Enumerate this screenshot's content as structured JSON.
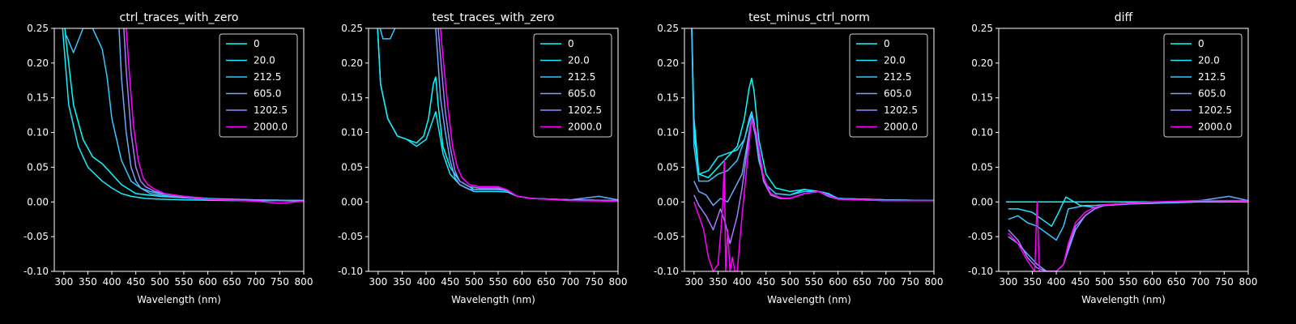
{
  "chart_data": [
    {
      "type": "line",
      "title": "ctrl_traces_with_zero",
      "xlabel": "Wavelength (nm)",
      "xlim": [
        280,
        800
      ],
      "ylim": [
        -0.1,
        0.25
      ],
      "xticks": [
        300,
        350,
        400,
        450,
        500,
        550,
        600,
        650,
        700,
        750,
        800
      ],
      "yticks": [
        -0.1,
        -0.05,
        0.0,
        0.05,
        0.1,
        0.15,
        0.2,
        0.25
      ],
      "legend_position": "upper-right",
      "series": [
        {
          "name": "0",
          "color": "#00ffff",
          "x": [
            295,
            305,
            320,
            340,
            360,
            380,
            400,
            420,
            450,
            500,
            550,
            600,
            700,
            800
          ],
          "y": [
            0.3,
            0.23,
            0.14,
            0.09,
            0.065,
            0.055,
            0.04,
            0.025,
            0.012,
            0.008,
            0.006,
            0.004,
            0.002,
            0.002
          ]
        },
        {
          "name": "20.0",
          "color": "#1aeaff",
          "x": [
            295,
            310,
            330,
            350,
            380,
            400,
            420,
            440,
            470,
            500,
            550,
            650,
            800
          ],
          "y": [
            0.27,
            0.14,
            0.08,
            0.05,
            0.03,
            0.02,
            0.012,
            0.008,
            0.005,
            0.004,
            0.003,
            0.002,
            0.002
          ]
        },
        {
          "name": "212.5",
          "color": "#39c6ff",
          "x": [
            305,
            320,
            340,
            360,
            380,
            390,
            400,
            420,
            440,
            460,
            480,
            500,
            550,
            600,
            700,
            800
          ],
          "y": [
            0.24,
            0.215,
            0.25,
            0.25,
            0.22,
            0.18,
            0.12,
            0.06,
            0.03,
            0.02,
            0.015,
            0.012,
            0.008,
            0.005,
            0.003,
            0.002
          ]
        },
        {
          "name": "605.0",
          "color": "#66aaff",
          "x": [
            415,
            420,
            430,
            440,
            450,
            460,
            480,
            500,
            550,
            600,
            800
          ],
          "y": [
            0.25,
            0.18,
            0.1,
            0.05,
            0.03,
            0.02,
            0.012,
            0.01,
            0.006,
            0.004,
            0.002
          ]
        },
        {
          "name": "1202.5",
          "color": "#a37dff",
          "x": [
            425,
            430,
            440,
            450,
            460,
            470,
            490,
            510,
            550,
            600,
            800
          ],
          "y": [
            0.25,
            0.19,
            0.1,
            0.05,
            0.03,
            0.022,
            0.015,
            0.012,
            0.007,
            0.004,
            0.001
          ]
        },
        {
          "name": "2000.0",
          "color": "#ff00ff",
          "x": [
            430,
            435,
            445,
            455,
            465,
            475,
            490,
            510,
            550,
            600,
            700,
            750,
            800
          ],
          "y": [
            0.25,
            0.2,
            0.11,
            0.06,
            0.035,
            0.025,
            0.018,
            0.012,
            0.008,
            0.004,
            0.001,
            -0.002,
            0.001
          ]
        }
      ]
    },
    {
      "type": "line",
      "title": "test_traces_with_zero",
      "xlabel": "Wavelength (nm)",
      "xlim": [
        280,
        800
      ],
      "ylim": [
        -0.1,
        0.25
      ],
      "xticks": [
        300,
        350,
        400,
        450,
        500,
        550,
        600,
        650,
        700,
        750,
        800
      ],
      "yticks": [
        -0.1,
        -0.05,
        0.0,
        0.05,
        0.1,
        0.15,
        0.2,
        0.25
      ],
      "legend_position": "upper-right",
      "series": [
        {
          "name": "0",
          "color": "#00ffff",
          "x": [
            295,
            305,
            320,
            340,
            360,
            380,
            395,
            405,
            415,
            420,
            425,
            435,
            450,
            470,
            500,
            550,
            570,
            590,
            620,
            700,
            800
          ],
          "y": [
            0.3,
            0.17,
            0.12,
            0.095,
            0.09,
            0.085,
            0.095,
            0.12,
            0.17,
            0.18,
            0.14,
            0.08,
            0.05,
            0.03,
            0.018,
            0.018,
            0.016,
            0.008,
            0.005,
            0.003,
            0.002
          ]
        },
        {
          "name": "20.0",
          "color": "#1aeaff",
          "x": [
            295,
            305,
            320,
            340,
            360,
            380,
            400,
            415,
            420,
            425,
            435,
            450,
            470,
            500,
            550,
            570,
            590,
            620,
            700,
            800
          ],
          "y": [
            0.3,
            0.17,
            0.12,
            0.095,
            0.09,
            0.08,
            0.09,
            0.12,
            0.13,
            0.11,
            0.07,
            0.04,
            0.025,
            0.015,
            0.015,
            0.014,
            0.008,
            0.005,
            0.003,
            0.002
          ]
        },
        {
          "name": "212.5",
          "color": "#39c6ff",
          "x": [
            300,
            310,
            325,
            335,
            345,
            360,
            380,
            400,
            415,
            420
          ],
          "y": [
            0.26,
            0.235,
            0.235,
            0.25,
            0.26,
            0.27,
            0.27,
            0.27,
            0.26,
            0.25
          ]
        },
        {
          "name": "605.0",
          "color": "#66aaff",
          "x": [
            420,
            425,
            430,
            440,
            450,
            460,
            470,
            490,
            510,
            550,
            570,
            590,
            620,
            700,
            760,
            800
          ],
          "y": [
            0.25,
            0.2,
            0.15,
            0.1,
            0.06,
            0.035,
            0.025,
            0.018,
            0.018,
            0.018,
            0.016,
            0.008,
            0.005,
            0.003,
            0.008,
            0.003
          ]
        },
        {
          "name": "1202.5",
          "color": "#a37dff",
          "x": [
            425,
            430,
            440,
            450,
            460,
            470,
            490,
            510,
            550,
            570,
            590,
            620,
            700,
            800
          ],
          "y": [
            0.25,
            0.21,
            0.13,
            0.08,
            0.045,
            0.03,
            0.022,
            0.02,
            0.02,
            0.016,
            0.008,
            0.005,
            0.003,
            0.002
          ]
        },
        {
          "name": "2000.0",
          "color": "#ff00ff",
          "x": [
            430,
            435,
            445,
            455,
            465,
            475,
            490,
            510,
            550,
            570,
            590,
            620,
            700,
            800
          ],
          "y": [
            0.25,
            0.21,
            0.14,
            0.08,
            0.05,
            0.035,
            0.025,
            0.022,
            0.022,
            0.017,
            0.008,
            0.005,
            0.002,
            0.001
          ]
        }
      ]
    },
    {
      "type": "line",
      "title": "test_minus_ctrl_norm",
      "xlabel": "Wavelength (nm)",
      "xlim": [
        280,
        800
      ],
      "ylim": [
        -0.1,
        0.25
      ],
      "xticks": [
        300,
        350,
        400,
        450,
        500,
        550,
        600,
        650,
        700,
        750,
        800
      ],
      "yticks": [
        -0.1,
        -0.05,
        0.0,
        0.05,
        0.1,
        0.15,
        0.2,
        0.25
      ],
      "legend_position": "upper-right",
      "series": [
        {
          "name": "0",
          "color": "#00ffff",
          "x": [
            295,
            300,
            310,
            330,
            350,
            370,
            390,
            405,
            415,
            420,
            425,
            435,
            450,
            470,
            500,
            530,
            560,
            580,
            600,
            700,
            800
          ],
          "y": [
            0.25,
            0.12,
            0.04,
            0.035,
            0.05,
            0.065,
            0.08,
            0.12,
            0.165,
            0.178,
            0.16,
            0.09,
            0.04,
            0.02,
            0.015,
            0.018,
            0.015,
            0.012,
            0.005,
            0.003,
            0.002
          ]
        },
        {
          "name": "20.0",
          "color": "#1aeaff",
          "x": [
            295,
            300,
            310,
            330,
            350,
            370,
            390,
            405,
            415,
            420,
            425,
            435,
            450,
            470,
            500,
            530,
            560,
            580,
            600,
            700,
            800
          ],
          "y": [
            0.27,
            0.1,
            0.04,
            0.045,
            0.065,
            0.07,
            0.075,
            0.09,
            0.115,
            0.125,
            0.11,
            0.06,
            0.025,
            0.012,
            0.01,
            0.018,
            0.015,
            0.012,
            0.005,
            0.003,
            0.002
          ]
        },
        {
          "name": "212.5",
          "color": "#39c6ff",
          "x": [
            295,
            300,
            310,
            330,
            350,
            370,
            390,
            405,
            415,
            420,
            425,
            435,
            450,
            470,
            500,
            530,
            560,
            580,
            600,
            700,
            800
          ],
          "y": [
            0.25,
            0.08,
            0.03,
            0.03,
            0.04,
            0.045,
            0.06,
            0.09,
            0.12,
            0.13,
            0.115,
            0.06,
            0.025,
            0.012,
            0.01,
            0.015,
            0.015,
            0.01,
            0.005,
            0.003,
            0.002
          ]
        },
        {
          "name": "605.0",
          "color": "#66aaff",
          "x": [
            300,
            310,
            325,
            340,
            355,
            370,
            385,
            400,
            410,
            420,
            430,
            445,
            460,
            480,
            500,
            530,
            560,
            580,
            600,
            700,
            800
          ],
          "y": [
            0.03,
            0.015,
            0.01,
            -0.005,
            0.005,
            0.0,
            0.02,
            0.04,
            0.08,
            0.12,
            0.09,
            0.03,
            0.01,
            0.005,
            0.005,
            0.012,
            0.015,
            0.008,
            0.004,
            0.002,
            0.002
          ]
        },
        {
          "name": "1202.5",
          "color": "#a37dff",
          "x": [
            300,
            310,
            325,
            340,
            355,
            365,
            375,
            390,
            400,
            410,
            420,
            430,
            445,
            460,
            480,
            500,
            530,
            560,
            600,
            700,
            800
          ],
          "y": [
            0.01,
            -0.005,
            -0.02,
            -0.04,
            -0.01,
            -0.03,
            -0.06,
            -0.02,
            0.02,
            0.07,
            0.12,
            0.09,
            0.03,
            0.01,
            0.005,
            0.005,
            0.012,
            0.015,
            0.004,
            0.002,
            0.002
          ]
        },
        {
          "name": "2000.0",
          "color": "#ff00ff",
          "x": [
            300,
            310,
            320,
            330,
            340,
            350,
            355,
            360,
            363,
            366,
            370,
            375,
            380,
            385,
            390,
            395,
            400,
            410,
            420,
            430,
            445,
            460,
            480,
            500,
            530,
            560,
            600,
            700,
            800
          ],
          "y": [
            0.0,
            -0.02,
            -0.04,
            -0.08,
            -0.1,
            -0.09,
            -0.05,
            0.0,
            0.06,
            -0.1,
            -0.04,
            -0.1,
            -0.08,
            -0.1,
            -0.1,
            -0.06,
            -0.02,
            0.05,
            0.12,
            0.1,
            0.035,
            0.012,
            0.006,
            0.005,
            0.012,
            0.015,
            0.004,
            0.002,
            0.002
          ]
        }
      ]
    },
    {
      "type": "line",
      "title": "diff",
      "xlabel": "Wavelength (nm)",
      "xlim": [
        280,
        800
      ],
      "ylim": [
        -0.1,
        0.25
      ],
      "xticks": [
        300,
        350,
        400,
        450,
        500,
        550,
        600,
        650,
        700,
        750,
        800
      ],
      "yticks": [
        -0.1,
        -0.05,
        0.0,
        0.05,
        0.1,
        0.15,
        0.2,
        0.25
      ],
      "legend_position": "upper-right",
      "series": [
        {
          "name": "0",
          "color": "#00ffff",
          "x": [
            295,
            800
          ],
          "y": [
            0.0,
            0.0
          ]
        },
        {
          "name": "20.0",
          "color": "#1aeaff",
          "x": [
            300,
            320,
            350,
            370,
            390,
            405,
            415,
            420,
            430,
            450,
            480,
            500,
            550,
            600,
            700,
            800
          ],
          "y": [
            -0.01,
            -0.01,
            -0.015,
            -0.025,
            -0.035,
            -0.015,
            0.0,
            0.007,
            0.003,
            -0.005,
            -0.008,
            -0.005,
            -0.003,
            -0.002,
            0.0,
            0.0
          ]
        },
        {
          "name": "212.5",
          "color": "#39c6ff",
          "x": [
            300,
            320,
            340,
            360,
            380,
            400,
            415,
            425,
            440,
            460,
            480,
            500,
            550,
            600,
            700,
            800
          ],
          "y": [
            -0.025,
            -0.02,
            -0.03,
            -0.035,
            -0.045,
            -0.055,
            -0.035,
            -0.01,
            -0.008,
            -0.005,
            -0.005,
            -0.004,
            -0.002,
            -0.001,
            0.001,
            0.002
          ]
        },
        {
          "name": "605.0",
          "color": "#66aaff",
          "x": [
            300,
            320,
            340,
            360,
            380,
            400,
            415,
            425,
            440,
            460,
            480,
            500,
            550,
            600,
            700,
            760,
            800
          ],
          "y": [
            -0.05,
            -0.06,
            -0.075,
            -0.09,
            -0.1,
            -0.1,
            -0.09,
            -0.07,
            -0.04,
            -0.02,
            -0.01,
            -0.005,
            -0.003,
            -0.001,
            0.002,
            0.008,
            0.002
          ]
        },
        {
          "name": "1202.5",
          "color": "#a37dff",
          "x": [
            300,
            320,
            340,
            360,
            380,
            400,
            415,
            425,
            440,
            460,
            480,
            500,
            550,
            600,
            700,
            800
          ],
          "y": [
            -0.04,
            -0.055,
            -0.08,
            -0.095,
            -0.1,
            -0.1,
            -0.09,
            -0.065,
            -0.035,
            -0.02,
            -0.01,
            -0.005,
            -0.003,
            -0.001,
            0.002,
            0.002
          ]
        },
        {
          "name": "2000.0",
          "color": "#ff00ff",
          "x": [
            300,
            320,
            340,
            355,
            360,
            365,
            375,
            390,
            400,
            415,
            425,
            440,
            460,
            480,
            500,
            550,
            600,
            700,
            800
          ],
          "y": [
            -0.045,
            -0.06,
            -0.085,
            -0.1,
            0.0,
            -0.1,
            -0.1,
            -0.1,
            -0.1,
            -0.09,
            -0.06,
            -0.03,
            -0.015,
            -0.008,
            -0.004,
            -0.002,
            0.0,
            0.002,
            0.001
          ]
        }
      ]
    }
  ]
}
